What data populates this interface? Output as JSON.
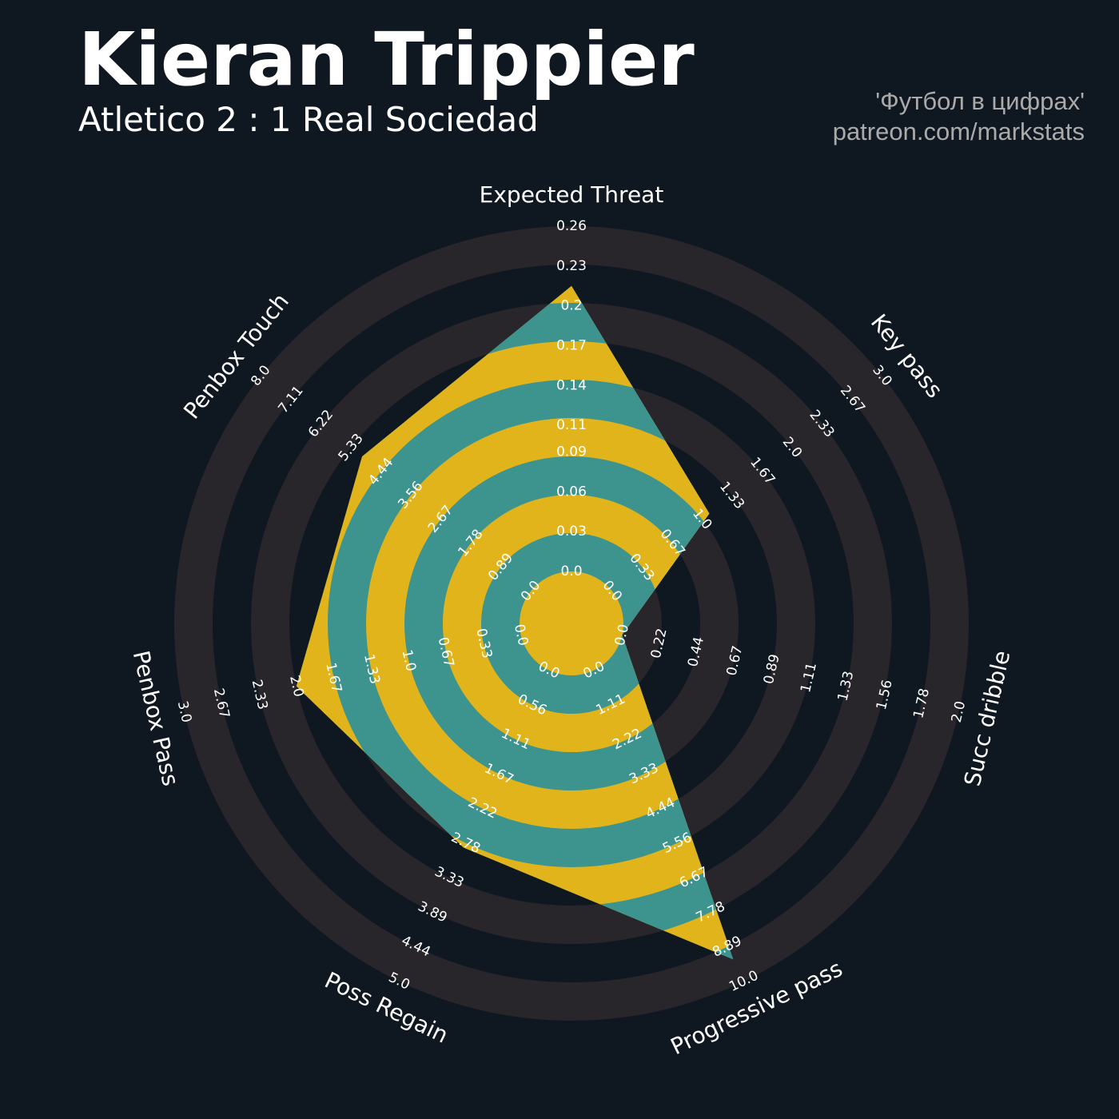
{
  "chart_data": {
    "type": "radar",
    "title": "Kieran Trippier",
    "subtitle": "Atletico 2 : 1 Real Sociedad",
    "annotations": [
      "'Футбол в цифрах'",
      "patreon.com/markstats"
    ],
    "categories": [
      "Expected Threat",
      "Key pass",
      "Succ dribble",
      "Progressive pass",
      "Poss Regain",
      "Penbox Pass",
      "Penbox Touch"
    ],
    "values": [
      0.215,
      1.08,
      0.0,
      9.3,
      2.85,
      2.0,
      5.0
    ],
    "ranges": [
      [
        0,
        0.26
      ],
      [
        0,
        3
      ],
      [
        0,
        2
      ],
      [
        0,
        10
      ],
      [
        0,
        5
      ],
      [
        0,
        3
      ],
      [
        0,
        8
      ]
    ],
    "ticks": [
      [
        {
          "value": 0,
          "label": "0.0"
        },
        0.03,
        0.06,
        0.09,
        0.11,
        0.14,
        0.17,
        0.2,
        0.23,
        0.26
      ],
      [
        {
          "value": 0,
          "label": "0.0"
        },
        0.33,
        0.67,
        {
          "value": 1,
          "label": "1.0"
        },
        1.33,
        1.67,
        {
          "value": 2,
          "label": "2.0"
        },
        2.33,
        2.67,
        {
          "value": 3,
          "label": "3.0"
        }
      ],
      [
        {
          "value": 0,
          "label": "0.0"
        },
        0.22,
        0.44,
        0.67,
        0.89,
        1.11,
        1.33,
        1.56,
        1.78,
        {
          "value": 2,
          "label": "2.0"
        }
      ],
      [
        {
          "value": 0,
          "label": "0.0"
        },
        1.11,
        2.22,
        3.33,
        4.44,
        5.56,
        6.67,
        7.78,
        8.89,
        {
          "value": 10,
          "label": "10.0"
        }
      ],
      [
        {
          "value": 0,
          "label": "0.0"
        },
        0.56,
        1.11,
        1.67,
        2.22,
        2.78,
        3.33,
        3.89,
        4.44,
        {
          "value": 5,
          "label": "5.0"
        }
      ],
      [
        {
          "value": 0,
          "label": "0.0"
        },
        0.33,
        0.67,
        {
          "value": 1,
          "label": "1.0"
        },
        1.33,
        1.67,
        {
          "value": 2,
          "label": "2.0"
        },
        2.33,
        2.67,
        {
          "value": 3,
          "label": "3.0"
        }
      ],
      [
        {
          "value": 0,
          "label": "0.0"
        },
        0.89,
        1.78,
        2.67,
        3.56,
        4.44,
        5.33,
        6.22,
        7.11,
        {
          "value": 8,
          "label": "8.0"
        }
      ]
    ],
    "colors": {
      "background": "#0f1820",
      "ring": "#28252b",
      "fill": "#3d948e",
      "fill_alt": "#e2b41b"
    }
  }
}
